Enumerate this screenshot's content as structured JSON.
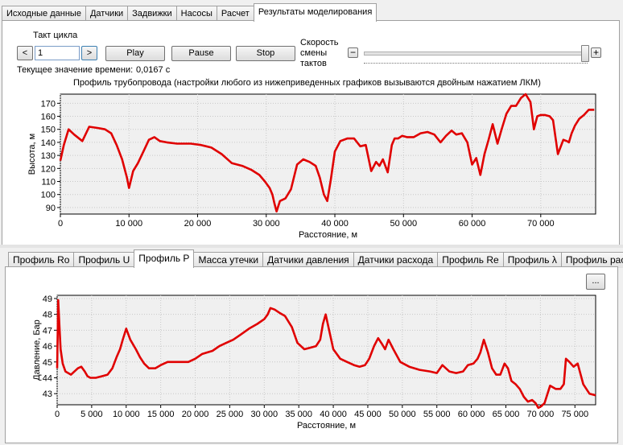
{
  "tabs": [
    "Исходные данные",
    "Датчики",
    "Задвижки",
    "Насосы",
    "Расчет",
    "Результаты моделирования"
  ],
  "controls": {
    "cycle_label": "Такт цикла",
    "prev": "<",
    "cycle_value": "1",
    "next": ">",
    "play": "Play",
    "pause": "Pause",
    "stop": "Stop",
    "speed_label_1": "Скорость",
    "speed_label_2": "смены",
    "speed_label_3": "тактов",
    "minus": "−",
    "plus": "+",
    "speed_value": 1.0,
    "time_label": "Текущее значение времени:",
    "time_value": "0,0167 с"
  },
  "profile_caption": "Профиль трубопровода (настройки любого из нижеприведенных графиков вызываются двойным нажатием ЛКМ)",
  "bottom_tabs": [
    "Профиль Ro",
    "Профиль U",
    "Профиль P",
    "Масса утечки",
    "Датчики давления",
    "Датчики расхода",
    "Профиль Re",
    "Профиль λ",
    "Профиль расхода"
  ],
  "more_button": "...",
  "colors": {
    "line": "#e00000",
    "plot_bg": "#f0f0f0",
    "grid": "#c8c8c8"
  },
  "chart_data": [
    {
      "type": "line",
      "xlabel": "Расстояние, м",
      "ylabel": "Высота, м",
      "xlim": [
        0,
        78000
      ],
      "ylim": [
        85,
        177
      ],
      "xticks": [
        0,
        10000,
        20000,
        30000,
        40000,
        50000,
        60000,
        70000
      ],
      "xtick_labels": [
        "0",
        "10 000",
        "20 000",
        "30 000",
        "40 000",
        "50 000",
        "60 000",
        "70 000"
      ],
      "yticks": [
        90,
        100,
        110,
        120,
        130,
        140,
        150,
        160,
        170
      ],
      "series": [
        {
          "x": [
            0,
            500,
            1200,
            2000,
            3200,
            4200,
            5500,
            6500,
            7400,
            8200,
            9000,
            9400,
            9700,
            10000,
            10600,
            11300,
            12200,
            12900,
            13700,
            14500,
            15500,
            17000,
            19000,
            20500,
            22000,
            23500,
            25000,
            26500,
            27800,
            29000,
            29800,
            30500,
            30900,
            31200,
            31500,
            32000,
            32800,
            33600,
            34500,
            35400,
            36300,
            37200,
            37800,
            38400,
            38900,
            39400,
            40000,
            40800,
            41800,
            42800,
            43700,
            44500,
            45300,
            46000,
            46500,
            47000,
            47700,
            48300,
            48700,
            49200,
            49800,
            50500,
            51500,
            52500,
            53500,
            54500,
            55400,
            56200,
            57000,
            57700,
            58500,
            59300,
            60000,
            60600,
            61200,
            61800,
            62400,
            63000,
            63700,
            64300,
            65000,
            65700,
            66400,
            67100,
            67800,
            68500,
            69000,
            69500,
            70000,
            70600,
            71300,
            71800,
            72500,
            73300,
            73800,
            74100,
            74500,
            75000,
            75600,
            76300,
            77000,
            77800
          ],
          "y": [
            126,
            138,
            150,
            146,
            141,
            152,
            151,
            150,
            147,
            138,
            127,
            119,
            113,
            105,
            118,
            124,
            134,
            142,
            144,
            141,
            140,
            139,
            139,
            138,
            136,
            131,
            124,
            122,
            119,
            115,
            110,
            105,
            100,
            93,
            87,
            95,
            97,
            104,
            123,
            127,
            125,
            122,
            113,
            100,
            95,
            111,
            133,
            141,
            143,
            143,
            137,
            138,
            118,
            125,
            122,
            127,
            117,
            138,
            143,
            143,
            145,
            144,
            144,
            147,
            148,
            146,
            140,
            145,
            149,
            146,
            147,
            140,
            123,
            128,
            115,
            131,
            142,
            154,
            139,
            150,
            162,
            168,
            168,
            174,
            177,
            171,
            150,
            160,
            161,
            161,
            160,
            157,
            131,
            142,
            141,
            140,
            147,
            153,
            158,
            161,
            165,
            165
          ]
        }
      ]
    },
    {
      "type": "line",
      "xlabel": "Расстояние, м",
      "ylabel": "Давление, Бар",
      "xlim": [
        0,
        78000
      ],
      "ylim": [
        42.3,
        49.2
      ],
      "xticks": [
        0,
        5000,
        10000,
        15000,
        20000,
        25000,
        30000,
        35000,
        40000,
        45000,
        50000,
        55000,
        60000,
        65000,
        70000,
        75000
      ],
      "xtick_labels": [
        "0",
        "5 000",
        "10 000",
        "15 000",
        "20 000",
        "25 000",
        "30 000",
        "35 000",
        "40 000",
        "45 000",
        "50 000",
        "55 000",
        "60 000",
        "65 000",
        "70 000",
        "75 000"
      ],
      "yticks": [
        43,
        44,
        45,
        46,
        47,
        48,
        49
      ],
      "series": [
        {
          "x": [
            0,
            150,
            300,
            500,
            800,
            1200,
            2000,
            3000,
            3500,
            4000,
            4400,
            4800,
            5600,
            6500,
            7300,
            8000,
            8600,
            9100,
            9500,
            10000,
            10600,
            11400,
            12000,
            12600,
            13300,
            14200,
            15000,
            16000,
            17500,
            19000,
            20000,
            21000,
            22500,
            23500,
            24500,
            25500,
            26500,
            27800,
            29000,
            30000,
            30500,
            30900,
            31500,
            32200,
            33000,
            34000,
            34800,
            35800,
            36700,
            37500,
            38100,
            38500,
            38900,
            39400,
            40000,
            41000,
            42000,
            43000,
            43800,
            44600,
            45200,
            45900,
            46500,
            47100,
            47500,
            48000,
            48700,
            49700,
            51000,
            52500,
            54000,
            55000,
            55800,
            56800,
            57800,
            58800,
            59500,
            60300,
            60900,
            61300,
            61800,
            62400,
            63000,
            63600,
            64200,
            64800,
            65300,
            65800,
            66400,
            67000,
            67600,
            68200,
            68800,
            69300,
            69700,
            70100,
            70600,
            71400,
            72200,
            72900,
            73400,
            73700,
            74200,
            74800,
            75400,
            76200,
            77100,
            78000
          ],
          "y": [
            44.6,
            48.9,
            47.5,
            45.8,
            44.9,
            44.4,
            44.2,
            44.6,
            44.7,
            44.4,
            44.1,
            44.0,
            44.0,
            44.1,
            44.2,
            44.6,
            45.3,
            45.8,
            46.4,
            47.1,
            46.4,
            45.8,
            45.3,
            44.9,
            44.6,
            44.6,
            44.8,
            45.0,
            45.0,
            45.0,
            45.2,
            45.5,
            45.7,
            46.0,
            46.2,
            46.4,
            46.7,
            47.1,
            47.4,
            47.7,
            48.0,
            48.4,
            48.3,
            48.1,
            47.9,
            47.2,
            46.2,
            45.8,
            45.9,
            46.0,
            46.4,
            47.4,
            48.0,
            47.0,
            45.8,
            45.2,
            45.0,
            44.8,
            44.7,
            44.8,
            45.2,
            46.0,
            46.5,
            46.1,
            45.8,
            46.4,
            45.8,
            45.0,
            44.7,
            44.5,
            44.4,
            44.3,
            44.8,
            44.4,
            44.3,
            44.4,
            44.8,
            44.9,
            45.2,
            45.6,
            46.4,
            45.6,
            44.6,
            44.2,
            44.2,
            44.9,
            44.6,
            43.8,
            43.6,
            43.3,
            42.8,
            42.5,
            42.6,
            42.4,
            42.1,
            42.2,
            42.4,
            43.5,
            43.3,
            43.3,
            43.6,
            45.2,
            45.0,
            44.7,
            44.9,
            43.6,
            43.0,
            42.9
          ]
        }
      ]
    }
  ]
}
